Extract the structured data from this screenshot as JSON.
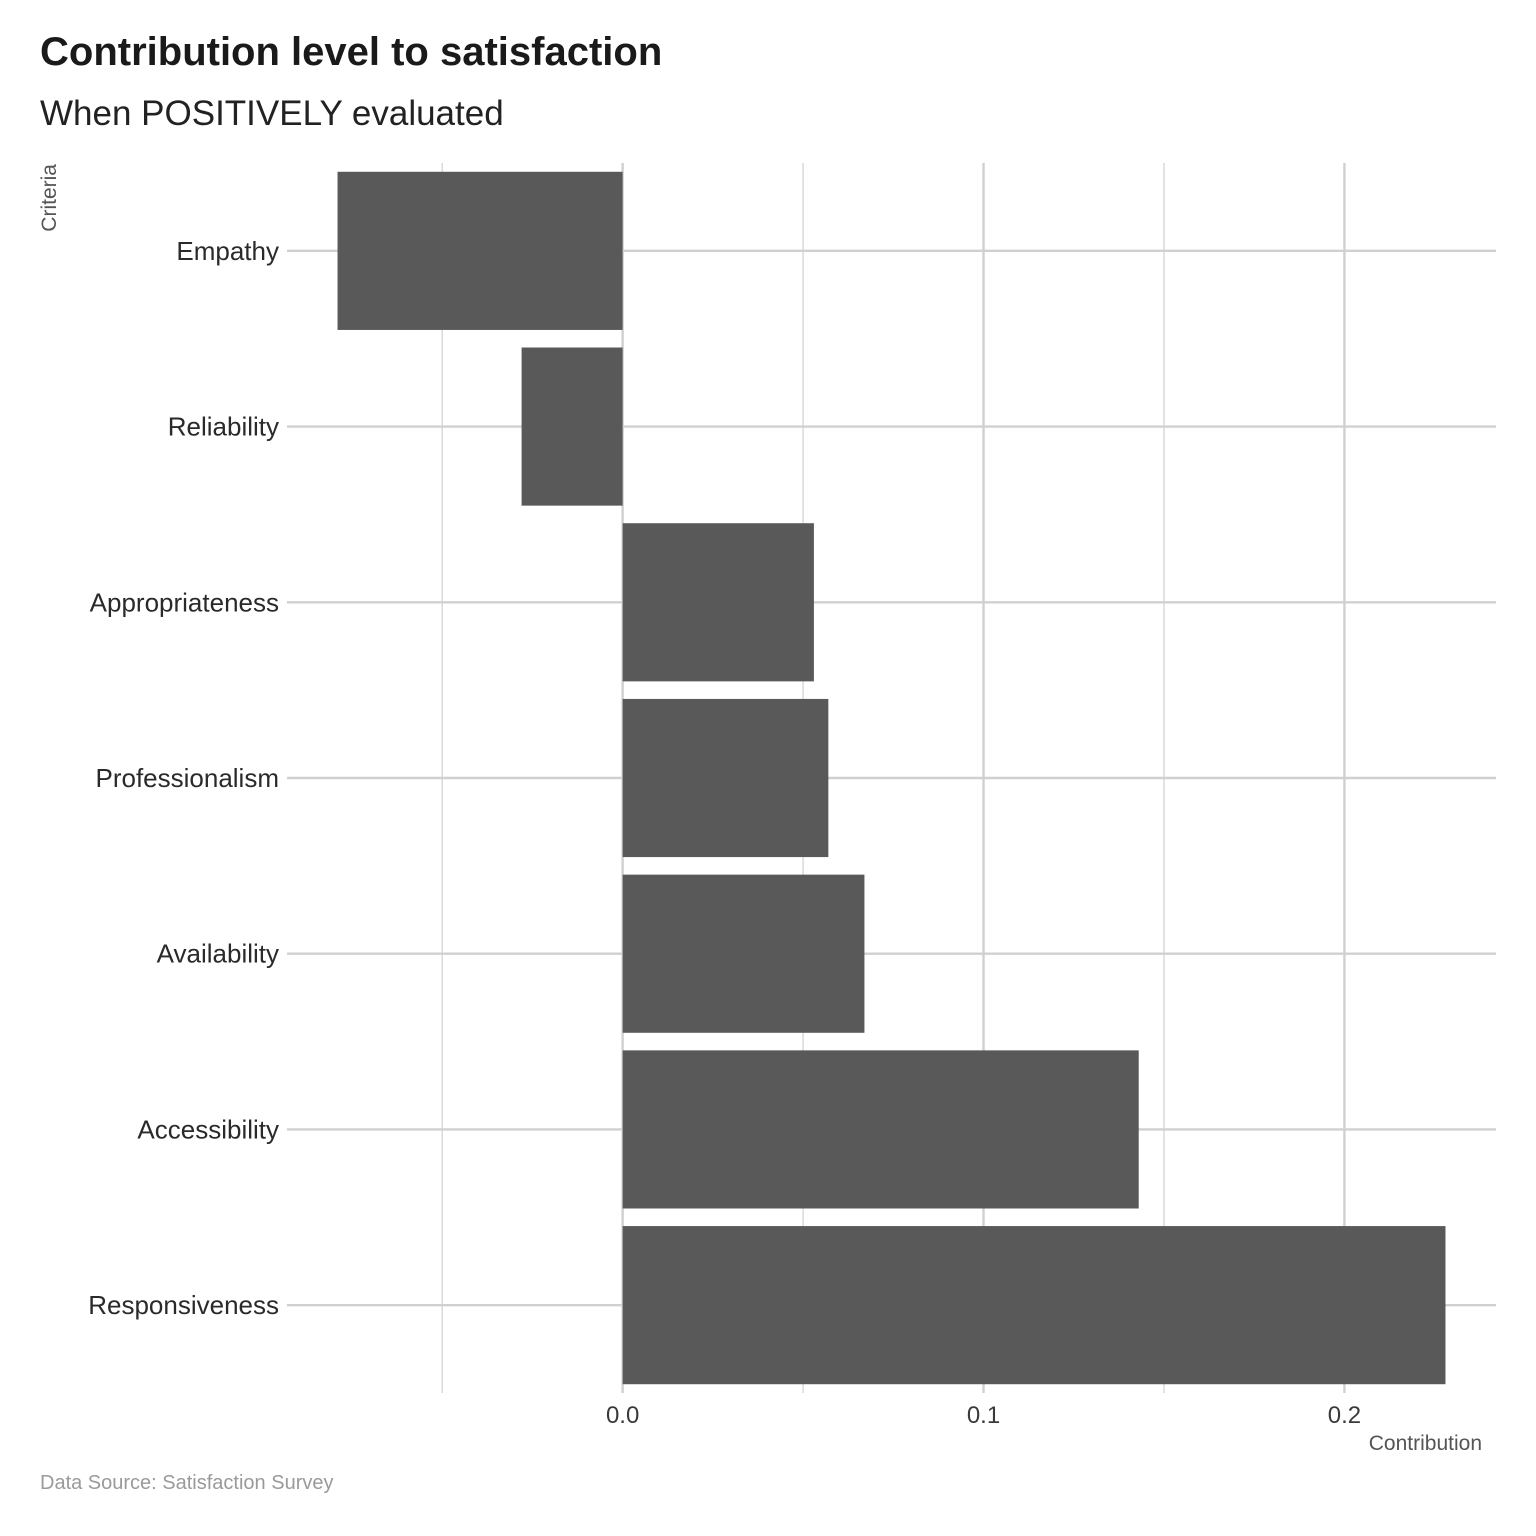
{
  "chart_data": {
    "type": "bar",
    "orientation": "horizontal",
    "title": "Contribution level to satisfaction",
    "subtitle": "When POSITIVELY evaluated",
    "caption": "Data Source: Satisfaction Survey",
    "xlabel": "Contribution",
    "ylabel": "Criteria",
    "categories": [
      "Empathy",
      "Reliability",
      "Appropriateness",
      "Professionalism",
      "Availability",
      "Accessibility",
      "Responsiveness"
    ],
    "values": [
      -0.079,
      -0.028,
      0.053,
      0.057,
      0.067,
      0.143,
      0.228
    ],
    "xlim": [
      -0.093,
      0.242
    ],
    "xticks": [
      0.0,
      0.1,
      0.2
    ],
    "xtick_labels": [
      "0.0",
      "0.1",
      "0.2"
    ],
    "minor_gridlines": [
      -0.05,
      0.05,
      0.15
    ],
    "grid": true,
    "bar_color": "#595959",
    "grid_color": "#d0d0d0"
  }
}
